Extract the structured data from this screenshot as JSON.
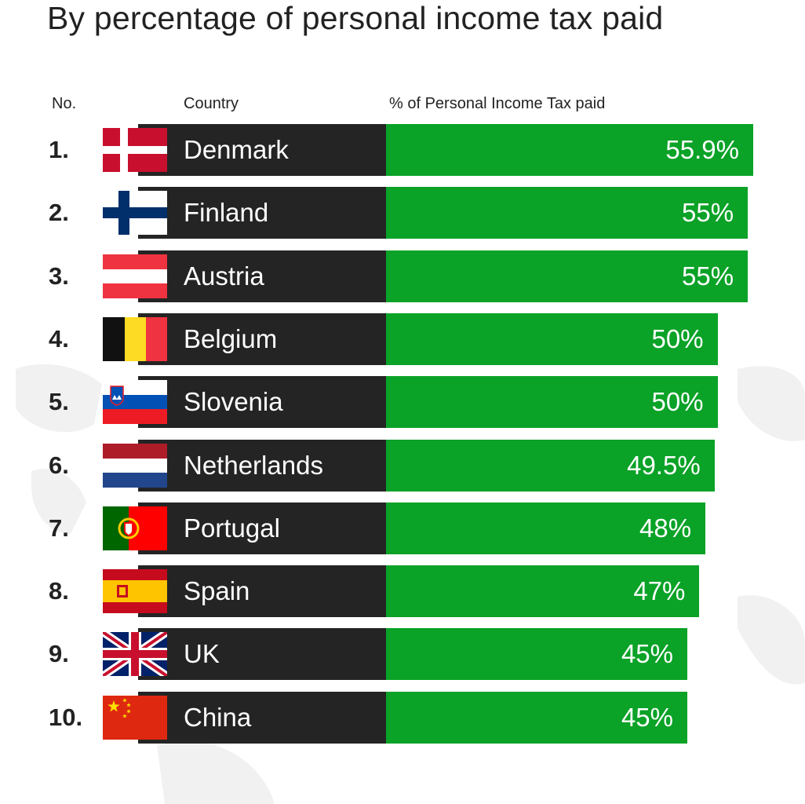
{
  "title": "By percentage of personal income tax paid",
  "headers": {
    "no": "No.",
    "country": "Country",
    "pct": "% of Personal Income Tax paid"
  },
  "colors": {
    "bar": "#0aa227",
    "name_bg": "#242424",
    "text": "#222222"
  },
  "chart_data": {
    "type": "bar",
    "orientation": "horizontal",
    "title": "By percentage of personal income tax paid",
    "ylabel": "Country",
    "xlabel": "% of Personal Income Tax paid",
    "categories": [
      "Denmark",
      "Finland",
      "Austria",
      "Belgium",
      "Slovenia",
      "Netherlands",
      "Portugal",
      "Spain",
      "UK",
      "China"
    ],
    "values": [
      55.9,
      55,
      55,
      50,
      50,
      49.5,
      48,
      47,
      45,
      45
    ],
    "ranks": [
      "1.",
      "2.",
      "3.",
      "4.",
      "5.",
      "6.",
      "7.",
      "8.",
      "9.",
      "10."
    ],
    "labels": [
      "55.9%",
      "55%",
      "55%",
      "50%",
      "50%",
      "49.5%",
      "48%",
      "47%",
      "45%",
      "45%"
    ],
    "flags": [
      "denmark-flag",
      "finland-flag",
      "austria-flag",
      "belgium-flag",
      "slovenia-flag",
      "netherlands-flag",
      "portugal-flag",
      "spain-flag",
      "uk-flag",
      "china-flag"
    ]
  }
}
